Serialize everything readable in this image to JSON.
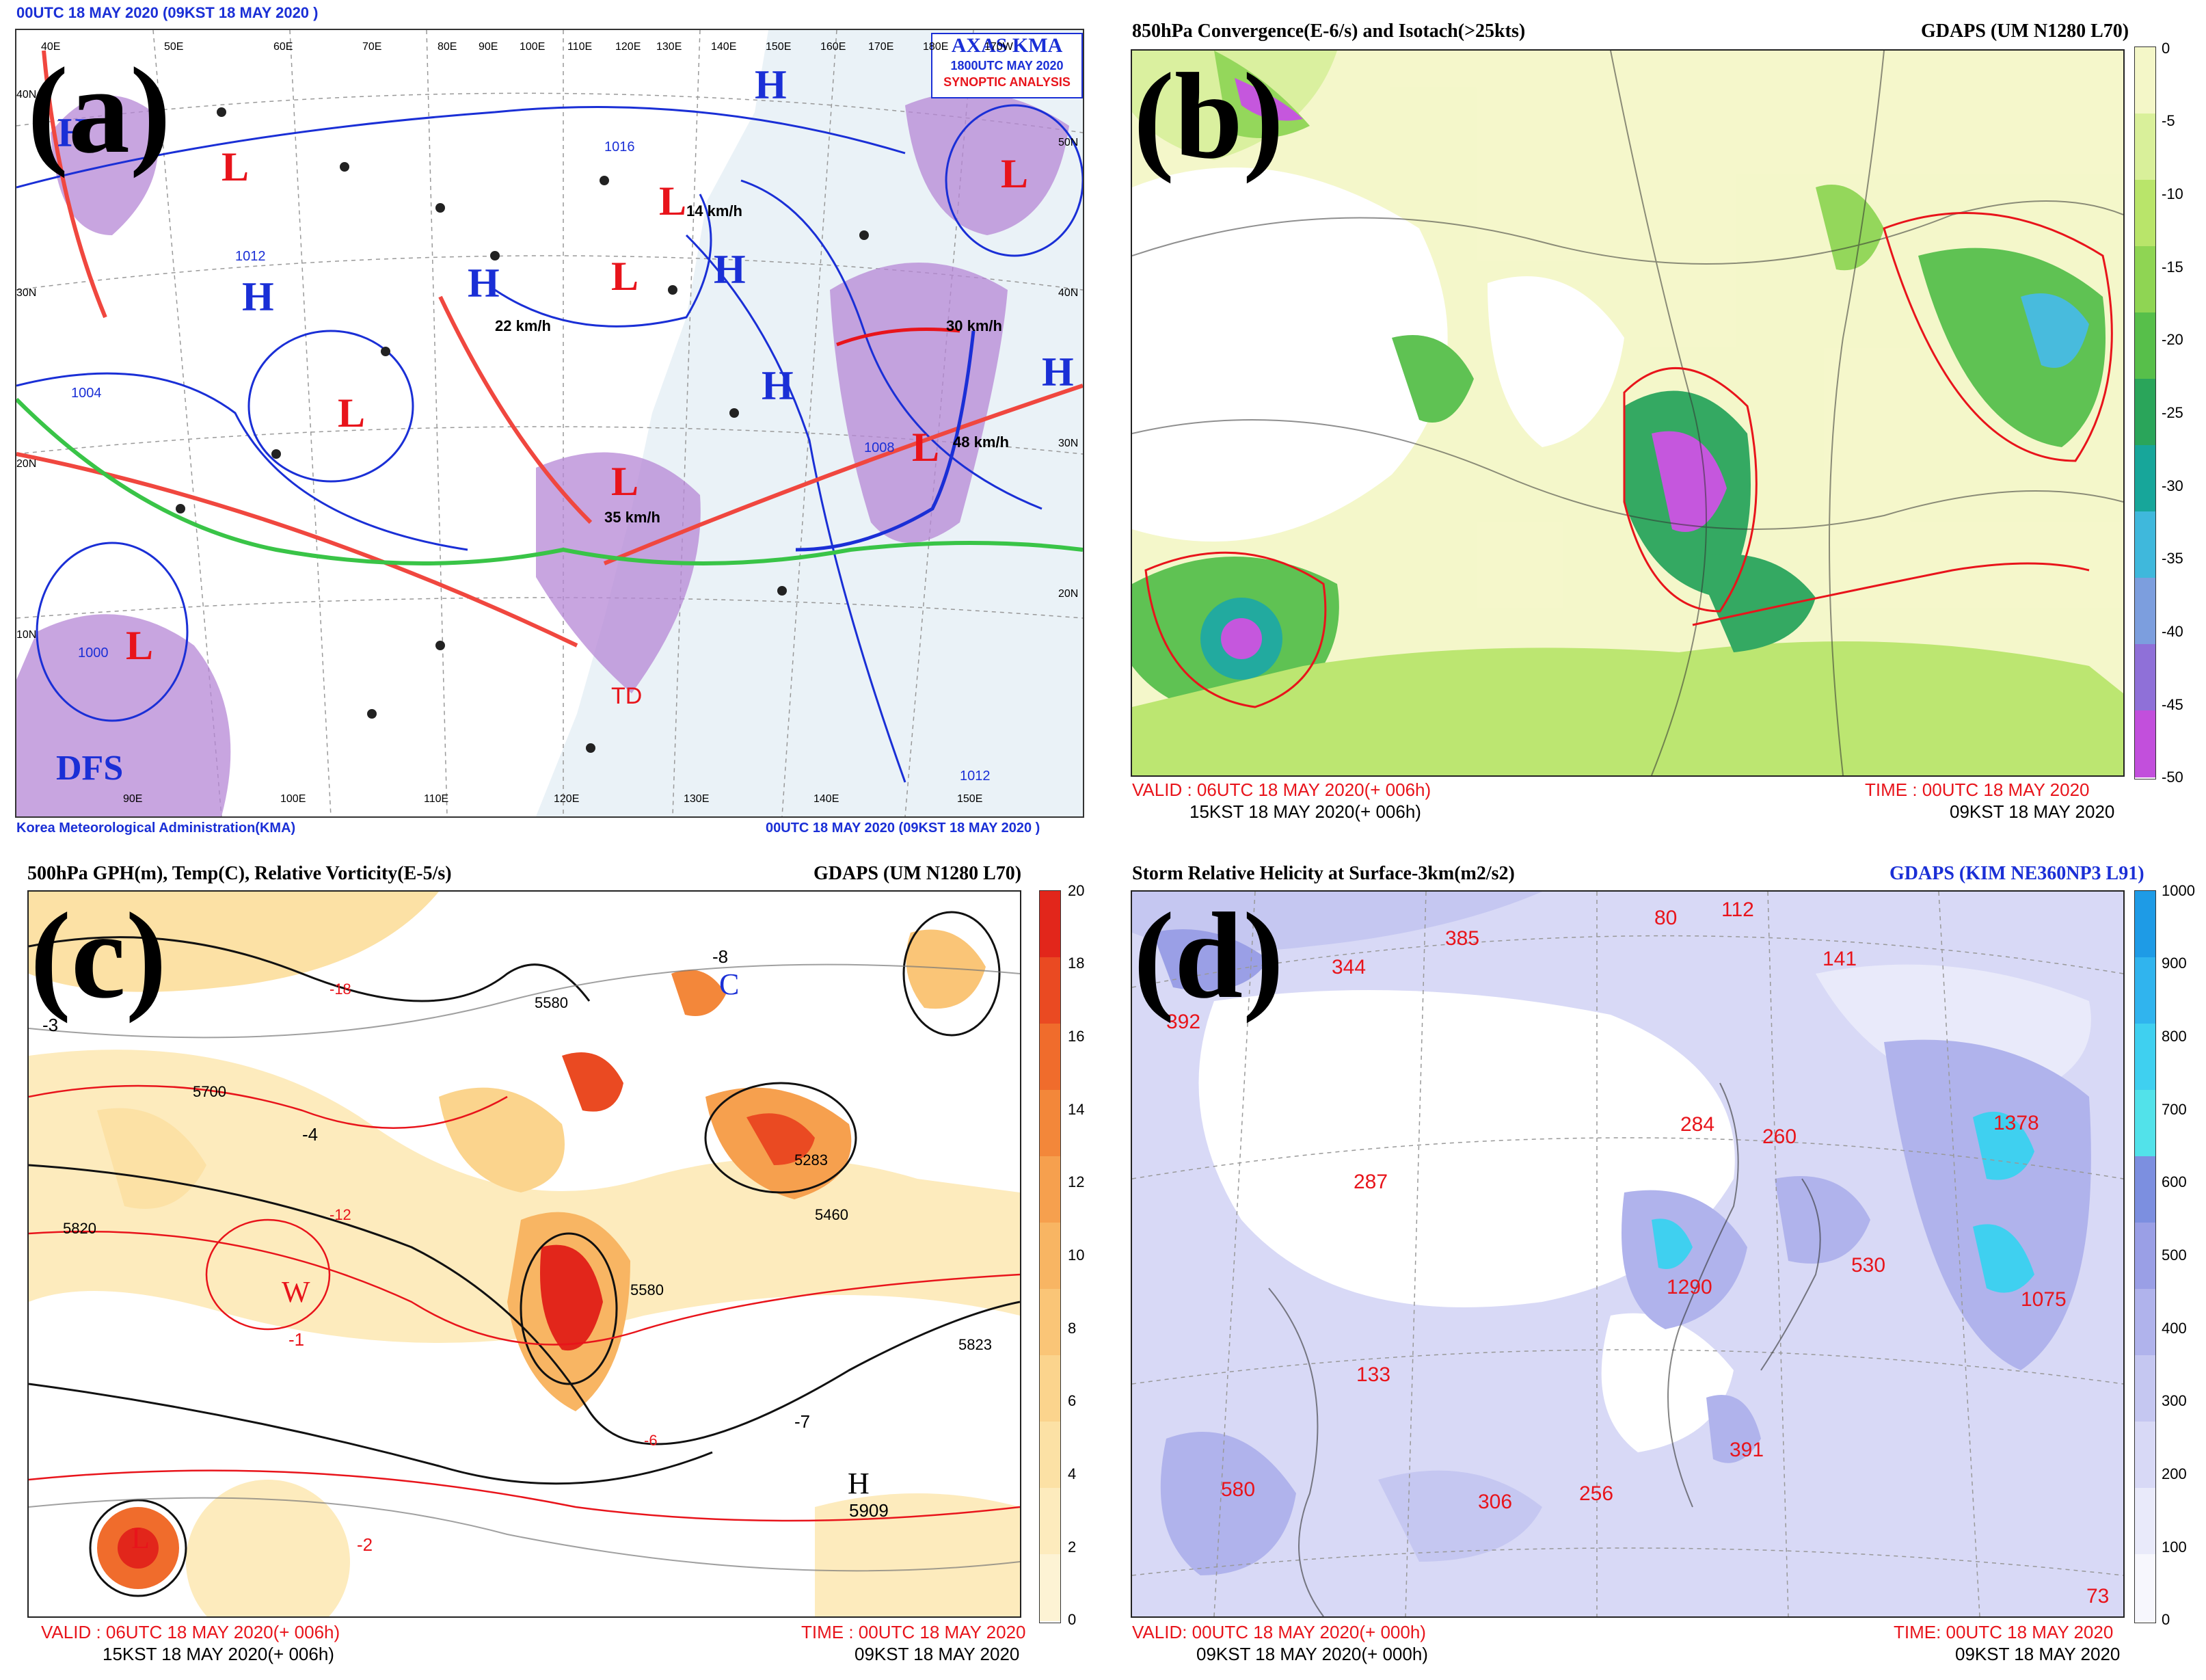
{
  "panel_a": {
    "label": "(a)",
    "top_left": "00UTC 18 MAY 2020 (09KST 18 MAY 2020 )",
    "box_line1": "AXAS KMA",
    "box_line2": "1800UTC MAY 2020",
    "box_line3": "SYNOPTIC ANALYSIS",
    "bottom_left": "Korea Meteorological Administration(KMA)",
    "bottom_right": "00UTC 18 MAY 2020 (09KST 18 MAY 2020 )",
    "dfs": "DFS",
    "td": "TD",
    "lon_top": [
      "40E",
      "50E",
      "60E",
      "70E",
      "80E",
      "90E",
      "100E",
      "110E",
      "120E",
      "130E",
      "140E",
      "150E",
      "160E",
      "170E",
      "180E",
      "170W"
    ],
    "lon_bottom": [
      "90E",
      "100E",
      "110E",
      "120E",
      "130E",
      "140E",
      "150E"
    ],
    "lat_left": [
      "40N",
      "30N",
      "20N",
      "10N"
    ],
    "lat_right": [
      "50N",
      "40N",
      "30N",
      "20N"
    ],
    "speeds": [
      "14 km/h",
      "22 km/h",
      "35 km/h",
      "30 km/h",
      "48 km/h"
    ],
    "isobars": [
      "1004",
      "1012",
      "1016",
      "1008",
      "1000",
      "1012"
    ]
  },
  "panel_b": {
    "label": "(b)",
    "title": "850hPa Convergence(E-6/s) and Isotach(>25kts)",
    "model": "GDAPS (UM N1280 L70)",
    "valid1": "VALID : 06UTC 18 MAY 2020(+ 006h)",
    "valid2": "15KST 18 MAY 2020(+ 006h)",
    "time1": "TIME : 00UTC 18 MAY 2020",
    "time2": "09KST 18 MAY 2020",
    "colorbar": [
      "0",
      "-5",
      "-10",
      "-15",
      "-20",
      "-25",
      "-30",
      "-35",
      "-40",
      "-45",
      "-50"
    ],
    "colors": [
      "#f4f7c8",
      "#d9f09a",
      "#b9e56a",
      "#8fd553",
      "#57bf4a",
      "#2aa55a",
      "#17a69a",
      "#3fb8dc",
      "#7c9ede",
      "#8f70d8",
      "#c24fdc"
    ]
  },
  "panel_c": {
    "label": "(c)",
    "title": "500hPa GPH(m), Temp(C), Relative Vorticity(E-5/s)",
    "model": "GDAPS (UM N1280 L70)",
    "valid1": "VALID : 06UTC 18 MAY 2020(+ 006h)",
    "valid2": "15KST 18 MAY 2020(+ 006h)",
    "time1": "TIME : 00UTC 18 MAY 2020",
    "time2": "09KST 18 MAY 2020",
    "colorbar": [
      "20",
      "18",
      "16",
      "14",
      "12",
      "10",
      "8",
      "6",
      "4",
      "2",
      "0"
    ],
    "colors": [
      "#e2261b",
      "#ea4a22",
      "#f06c2c",
      "#f3873a",
      "#f6a04e",
      "#f8b563",
      "#fac577",
      "#fbd48d",
      "#fce1a5",
      "#fdebbd",
      "#fdf3d4"
    ],
    "heights": [
      "5580",
      "5700",
      "5820",
      "5460",
      "5909",
      "5283",
      "5823",
      "5580"
    ],
    "temps": [
      "-18",
      "-12",
      "-6",
      "-7",
      "-8",
      "-4",
      "-3",
      "-2",
      "-1"
    ],
    "centers": [
      "C",
      "W",
      "H",
      "L"
    ]
  },
  "panel_d": {
    "label": "(d)",
    "title": "Storm Relative Helicity at Surface-3km(m2/s2)",
    "model": "GDAPS (KIM NE360NP3 L91)",
    "valid1": "VALID: 00UTC 18 MAY 2020(+ 000h)",
    "valid2": "09KST 18 MAY 2020(+ 000h)",
    "time1": "TIME: 00UTC 18 MAY 2020",
    "time2": "09KST 18 MAY 2020",
    "colorbar": [
      "1000",
      "900",
      "800",
      "700",
      "600",
      "500",
      "400",
      "300",
      "200",
      "100",
      "0"
    ],
    "colors": [
      "#1e9be6",
      "#30b4ee",
      "#3fd0f0",
      "#52e2ea",
      "#7c8fe0",
      "#9a9fe6",
      "#b0b3ec",
      "#c5c7f1",
      "#d8d9f6",
      "#e9eafa",
      "#f7f7fd"
    ],
    "maxima": [
      {
        "v": "80"
      },
      {
        "v": "112"
      },
      {
        "v": "385"
      },
      {
        "v": "344"
      },
      {
        "v": "141"
      },
      {
        "v": "392"
      },
      {
        "v": "284"
      },
      {
        "v": "260"
      },
      {
        "v": "287"
      },
      {
        "v": "1378"
      },
      {
        "v": "530"
      },
      {
        "v": "1290"
      },
      {
        "v": "1075"
      },
      {
        "v": "133"
      },
      {
        "v": "391"
      },
      {
        "v": "580"
      },
      {
        "v": "306"
      },
      {
        "v": "256"
      },
      {
        "v": "73"
      }
    ]
  }
}
